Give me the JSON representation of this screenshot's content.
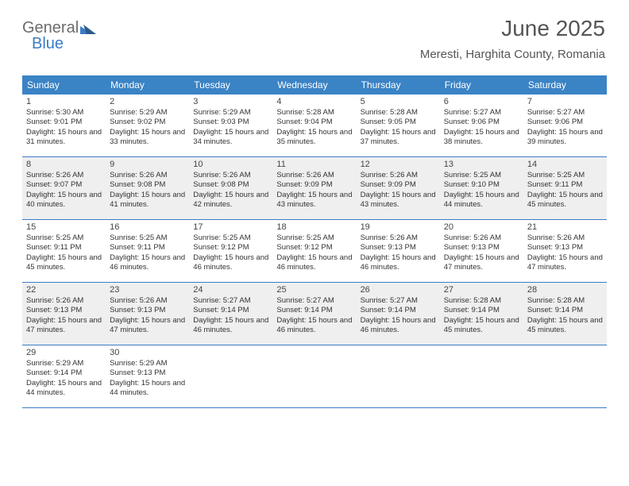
{
  "logo": {
    "text1": "General",
    "text2": "Blue"
  },
  "header": {
    "month_title": "June 2025",
    "location": "Meresti, Harghita County, Romania"
  },
  "colors": {
    "header_bg": "#3a83c5",
    "header_text": "#ffffff",
    "border": "#3a7cc4",
    "shaded_bg": "#efefef",
    "logo_gray": "#6b6b6b",
    "logo_blue": "#3a7cc4"
  },
  "day_headers": [
    "Sunday",
    "Monday",
    "Tuesday",
    "Wednesday",
    "Thursday",
    "Friday",
    "Saturday"
  ],
  "weeks": [
    {
      "shaded": false,
      "days": [
        {
          "num": "1",
          "sunrise": "Sunrise: 5:30 AM",
          "sunset": "Sunset: 9:01 PM",
          "daylight": "Daylight: 15 hours and 31 minutes."
        },
        {
          "num": "2",
          "sunrise": "Sunrise: 5:29 AM",
          "sunset": "Sunset: 9:02 PM",
          "daylight": "Daylight: 15 hours and 33 minutes."
        },
        {
          "num": "3",
          "sunrise": "Sunrise: 5:29 AM",
          "sunset": "Sunset: 9:03 PM",
          "daylight": "Daylight: 15 hours and 34 minutes."
        },
        {
          "num": "4",
          "sunrise": "Sunrise: 5:28 AM",
          "sunset": "Sunset: 9:04 PM",
          "daylight": "Daylight: 15 hours and 35 minutes."
        },
        {
          "num": "5",
          "sunrise": "Sunrise: 5:28 AM",
          "sunset": "Sunset: 9:05 PM",
          "daylight": "Daylight: 15 hours and 37 minutes."
        },
        {
          "num": "6",
          "sunrise": "Sunrise: 5:27 AM",
          "sunset": "Sunset: 9:06 PM",
          "daylight": "Daylight: 15 hours and 38 minutes."
        },
        {
          "num": "7",
          "sunrise": "Sunrise: 5:27 AM",
          "sunset": "Sunset: 9:06 PM",
          "daylight": "Daylight: 15 hours and 39 minutes."
        }
      ]
    },
    {
      "shaded": true,
      "days": [
        {
          "num": "8",
          "sunrise": "Sunrise: 5:26 AM",
          "sunset": "Sunset: 9:07 PM",
          "daylight": "Daylight: 15 hours and 40 minutes."
        },
        {
          "num": "9",
          "sunrise": "Sunrise: 5:26 AM",
          "sunset": "Sunset: 9:08 PM",
          "daylight": "Daylight: 15 hours and 41 minutes."
        },
        {
          "num": "10",
          "sunrise": "Sunrise: 5:26 AM",
          "sunset": "Sunset: 9:08 PM",
          "daylight": "Daylight: 15 hours and 42 minutes."
        },
        {
          "num": "11",
          "sunrise": "Sunrise: 5:26 AM",
          "sunset": "Sunset: 9:09 PM",
          "daylight": "Daylight: 15 hours and 43 minutes."
        },
        {
          "num": "12",
          "sunrise": "Sunrise: 5:26 AM",
          "sunset": "Sunset: 9:09 PM",
          "daylight": "Daylight: 15 hours and 43 minutes."
        },
        {
          "num": "13",
          "sunrise": "Sunrise: 5:25 AM",
          "sunset": "Sunset: 9:10 PM",
          "daylight": "Daylight: 15 hours and 44 minutes."
        },
        {
          "num": "14",
          "sunrise": "Sunrise: 5:25 AM",
          "sunset": "Sunset: 9:11 PM",
          "daylight": "Daylight: 15 hours and 45 minutes."
        }
      ]
    },
    {
      "shaded": false,
      "days": [
        {
          "num": "15",
          "sunrise": "Sunrise: 5:25 AM",
          "sunset": "Sunset: 9:11 PM",
          "daylight": "Daylight: 15 hours and 45 minutes."
        },
        {
          "num": "16",
          "sunrise": "Sunrise: 5:25 AM",
          "sunset": "Sunset: 9:11 PM",
          "daylight": "Daylight: 15 hours and 46 minutes."
        },
        {
          "num": "17",
          "sunrise": "Sunrise: 5:25 AM",
          "sunset": "Sunset: 9:12 PM",
          "daylight": "Daylight: 15 hours and 46 minutes."
        },
        {
          "num": "18",
          "sunrise": "Sunrise: 5:25 AM",
          "sunset": "Sunset: 9:12 PM",
          "daylight": "Daylight: 15 hours and 46 minutes."
        },
        {
          "num": "19",
          "sunrise": "Sunrise: 5:26 AM",
          "sunset": "Sunset: 9:13 PM",
          "daylight": "Daylight: 15 hours and 46 minutes."
        },
        {
          "num": "20",
          "sunrise": "Sunrise: 5:26 AM",
          "sunset": "Sunset: 9:13 PM",
          "daylight": "Daylight: 15 hours and 47 minutes."
        },
        {
          "num": "21",
          "sunrise": "Sunrise: 5:26 AM",
          "sunset": "Sunset: 9:13 PM",
          "daylight": "Daylight: 15 hours and 47 minutes."
        }
      ]
    },
    {
      "shaded": true,
      "days": [
        {
          "num": "22",
          "sunrise": "Sunrise: 5:26 AM",
          "sunset": "Sunset: 9:13 PM",
          "daylight": "Daylight: 15 hours and 47 minutes."
        },
        {
          "num": "23",
          "sunrise": "Sunrise: 5:26 AM",
          "sunset": "Sunset: 9:13 PM",
          "daylight": "Daylight: 15 hours and 47 minutes."
        },
        {
          "num": "24",
          "sunrise": "Sunrise: 5:27 AM",
          "sunset": "Sunset: 9:14 PM",
          "daylight": "Daylight: 15 hours and 46 minutes."
        },
        {
          "num": "25",
          "sunrise": "Sunrise: 5:27 AM",
          "sunset": "Sunset: 9:14 PM",
          "daylight": "Daylight: 15 hours and 46 minutes."
        },
        {
          "num": "26",
          "sunrise": "Sunrise: 5:27 AM",
          "sunset": "Sunset: 9:14 PM",
          "daylight": "Daylight: 15 hours and 46 minutes."
        },
        {
          "num": "27",
          "sunrise": "Sunrise: 5:28 AM",
          "sunset": "Sunset: 9:14 PM",
          "daylight": "Daylight: 15 hours and 45 minutes."
        },
        {
          "num": "28",
          "sunrise": "Sunrise: 5:28 AM",
          "sunset": "Sunset: 9:14 PM",
          "daylight": "Daylight: 15 hours and 45 minutes."
        }
      ]
    },
    {
      "shaded": false,
      "days": [
        {
          "num": "29",
          "sunrise": "Sunrise: 5:29 AM",
          "sunset": "Sunset: 9:14 PM",
          "daylight": "Daylight: 15 hours and 44 minutes."
        },
        {
          "num": "30",
          "sunrise": "Sunrise: 5:29 AM",
          "sunset": "Sunset: 9:13 PM",
          "daylight": "Daylight: 15 hours and 44 minutes."
        },
        {
          "num": "",
          "sunrise": "",
          "sunset": "",
          "daylight": ""
        },
        {
          "num": "",
          "sunrise": "",
          "sunset": "",
          "daylight": ""
        },
        {
          "num": "",
          "sunrise": "",
          "sunset": "",
          "daylight": ""
        },
        {
          "num": "",
          "sunrise": "",
          "sunset": "",
          "daylight": ""
        },
        {
          "num": "",
          "sunrise": "",
          "sunset": "",
          "daylight": ""
        }
      ]
    }
  ]
}
